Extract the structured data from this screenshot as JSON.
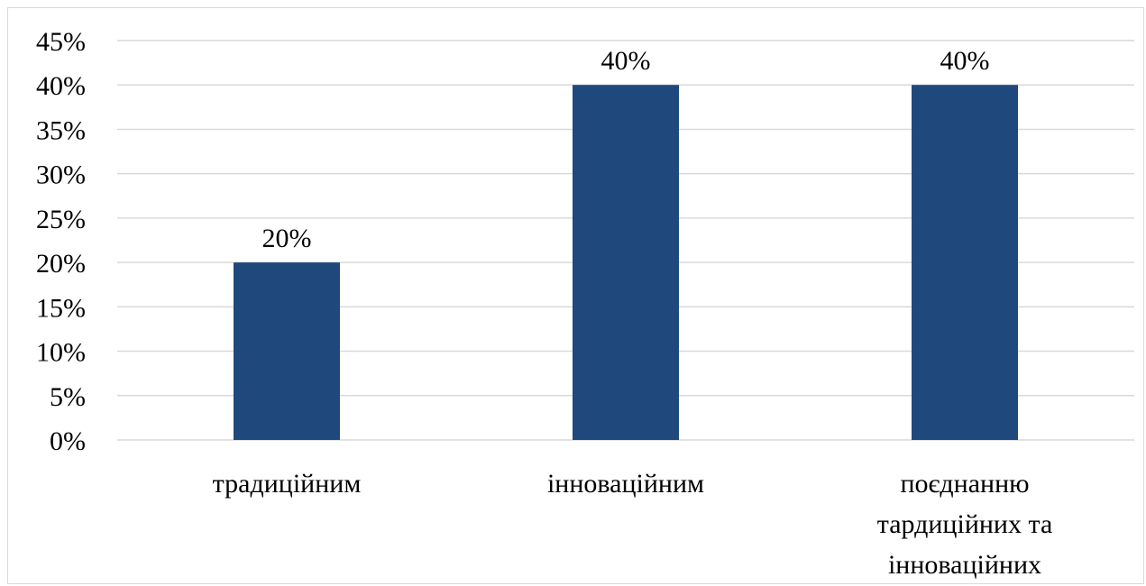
{
  "chart_data": {
    "type": "bar",
    "categories": [
      "традиційним",
      "інноваційним",
      "поєднанню тардиційних та інноваційних"
    ],
    "category_lines": [
      [
        "традиційним"
      ],
      [
        "інноваційним"
      ],
      [
        "поєднанню",
        "тардиційних та",
        "інноваційних"
      ]
    ],
    "values": [
      20,
      40,
      40
    ],
    "data_labels": [
      "20%",
      "40%",
      "40%"
    ],
    "y_ticks": [
      "0%",
      "5%",
      "10%",
      "15%",
      "20%",
      "25%",
      "30%",
      "35%",
      "40%",
      "45%"
    ],
    "ylim": [
      0,
      45
    ],
    "y_step": 5,
    "grid": true,
    "legend": "none",
    "title": "",
    "xlabel": "",
    "ylabel": "",
    "bar_color": "#1f497d",
    "grid_color": "#d9d9d9"
  }
}
